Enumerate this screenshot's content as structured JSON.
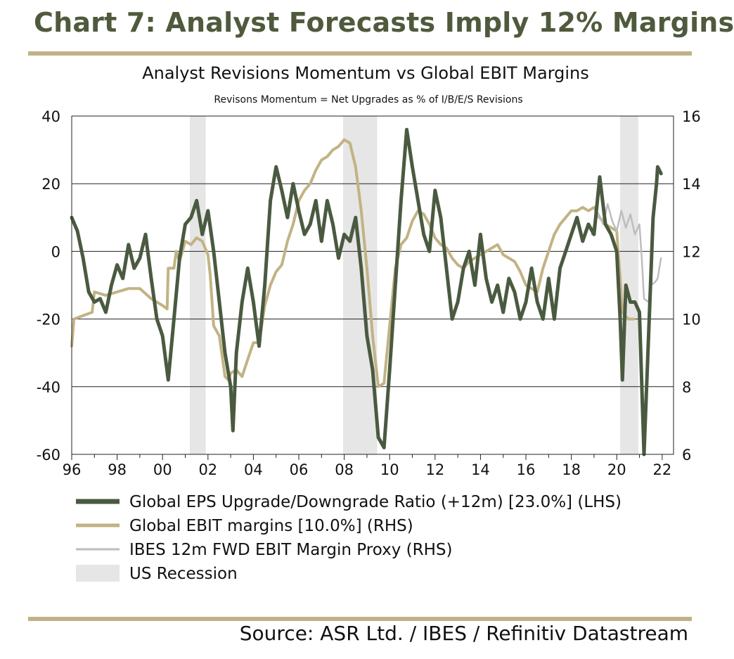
{
  "header": {
    "title": "Chart 7: Analyst Forecasts Imply 12% Margins"
  },
  "footer": {
    "source": "Source: ASR Ltd. / IBES / Refinitiv Datastream"
  },
  "colors": {
    "eps": "#4a5a40",
    "ebit": "#c2b384",
    "proxy": "#bdbdbd",
    "recession": "#e6e6e6",
    "rule": "#c0b287"
  },
  "chart_data": {
    "type": "line",
    "title": "Analyst Revisions Momentum vs Global EBIT Margins",
    "subtitle": "Revisons Momentum = Net Upgrades as % of I/B/E/S Revisions",
    "x_tick_labels": [
      "96",
      "98",
      "00",
      "02",
      "04",
      "06",
      "08",
      "10",
      "12",
      "14",
      "16",
      "18",
      "20",
      "22"
    ],
    "xlim": [
      1996,
      2022.5
    ],
    "y_left": {
      "ylim": [
        -60,
        40
      ],
      "ticks": [
        "40",
        "20",
        "0",
        "-20",
        "-40",
        "-60"
      ]
    },
    "y_right": {
      "ylim": [
        6,
        16
      ],
      "ticks": [
        "16",
        "14",
        "12",
        "10",
        "8",
        "6"
      ]
    },
    "grid": "horizontal",
    "recessions": [
      [
        2001.2,
        2001.9
      ],
      [
        2007.95,
        2009.45
      ],
      [
        2020.15,
        2020.95
      ]
    ],
    "series": [
      {
        "name": "Global EPS Upgrade/Downgrade Ratio (+12m) [23.0%] (LHS)",
        "axis": "left",
        "points": [
          [
            1996.0,
            10
          ],
          [
            1996.25,
            6
          ],
          [
            1996.5,
            -2
          ],
          [
            1996.75,
            -12
          ],
          [
            1997.0,
            -15
          ],
          [
            1997.25,
            -14
          ],
          [
            1997.5,
            -18
          ],
          [
            1997.75,
            -10
          ],
          [
            1998.0,
            -4
          ],
          [
            1998.25,
            -8
          ],
          [
            1998.5,
            2
          ],
          [
            1998.75,
            -5
          ],
          [
            1999.0,
            -2
          ],
          [
            1999.25,
            5
          ],
          [
            1999.5,
            -8
          ],
          [
            1999.75,
            -20
          ],
          [
            2000.0,
            -25
          ],
          [
            2000.25,
            -38
          ],
          [
            2000.5,
            -20
          ],
          [
            2000.75,
            -2
          ],
          [
            2001.0,
            8
          ],
          [
            2001.25,
            10
          ],
          [
            2001.5,
            15
          ],
          [
            2001.75,
            5
          ],
          [
            2002.0,
            12
          ],
          [
            2002.25,
            0
          ],
          [
            2002.5,
            -15
          ],
          [
            2002.75,
            -30
          ],
          [
            2003.0,
            -40
          ],
          [
            2003.1,
            -53
          ],
          [
            2003.25,
            -30
          ],
          [
            2003.5,
            -15
          ],
          [
            2003.75,
            -5
          ],
          [
            2004.0,
            -15
          ],
          [
            2004.25,
            -28
          ],
          [
            2004.5,
            -10
          ],
          [
            2004.75,
            15
          ],
          [
            2005.0,
            25
          ],
          [
            2005.25,
            18
          ],
          [
            2005.5,
            10
          ],
          [
            2005.75,
            20
          ],
          [
            2006.0,
            12
          ],
          [
            2006.25,
            5
          ],
          [
            2006.5,
            8
          ],
          [
            2006.75,
            15
          ],
          [
            2007.0,
            3
          ],
          [
            2007.25,
            15
          ],
          [
            2007.5,
            8
          ],
          [
            2007.75,
            -2
          ],
          [
            2008.0,
            5
          ],
          [
            2008.25,
            3
          ],
          [
            2008.5,
            10
          ],
          [
            2008.75,
            -5
          ],
          [
            2009.0,
            -25
          ],
          [
            2009.25,
            -35
          ],
          [
            2009.5,
            -55
          ],
          [
            2009.75,
            -58
          ],
          [
            2010.0,
            -35
          ],
          [
            2010.25,
            -10
          ],
          [
            2010.5,
            15
          ],
          [
            2010.75,
            36
          ],
          [
            2011.0,
            25
          ],
          [
            2011.25,
            15
          ],
          [
            2011.5,
            5
          ],
          [
            2011.75,
            0
          ],
          [
            2012.0,
            18
          ],
          [
            2012.25,
            10
          ],
          [
            2012.5,
            -5
          ],
          [
            2012.75,
            -20
          ],
          [
            2013.0,
            -15
          ],
          [
            2013.25,
            -5
          ],
          [
            2013.5,
            0
          ],
          [
            2013.75,
            -10
          ],
          [
            2014.0,
            5
          ],
          [
            2014.25,
            -8
          ],
          [
            2014.5,
            -15
          ],
          [
            2014.75,
            -10
          ],
          [
            2015.0,
            -18
          ],
          [
            2015.25,
            -8
          ],
          [
            2015.5,
            -12
          ],
          [
            2015.75,
            -20
          ],
          [
            2016.0,
            -15
          ],
          [
            2016.25,
            -5
          ],
          [
            2016.5,
            -15
          ],
          [
            2016.75,
            -20
          ],
          [
            2017.0,
            -8
          ],
          [
            2017.25,
            -20
          ],
          [
            2017.5,
            -5
          ],
          [
            2017.75,
            0
          ],
          [
            2018.0,
            5
          ],
          [
            2018.25,
            10
          ],
          [
            2018.5,
            3
          ],
          [
            2018.75,
            8
          ],
          [
            2019.0,
            5
          ],
          [
            2019.25,
            22
          ],
          [
            2019.5,
            8
          ],
          [
            2019.75,
            5
          ],
          [
            2020.0,
            0
          ],
          [
            2020.15,
            -20
          ],
          [
            2020.25,
            -38
          ],
          [
            2020.4,
            -10
          ],
          [
            2020.6,
            -15
          ],
          [
            2020.8,
            -15
          ],
          [
            2021.0,
            -18
          ],
          [
            2021.2,
            -60
          ],
          [
            2021.4,
            -25
          ],
          [
            2021.6,
            10
          ],
          [
            2021.75,
            20
          ],
          [
            2021.8,
            25
          ],
          [
            2021.95,
            23
          ]
        ]
      },
      {
        "name": "Global EBIT margins [10.0%] (RHS)",
        "axis": "right",
        "points": [
          [
            1996.0,
            9.2
          ],
          [
            1996.1,
            10
          ],
          [
            1996.5,
            10.1
          ],
          [
            1996.9,
            10.2
          ],
          [
            1997.0,
            10.8
          ],
          [
            1997.5,
            10.7
          ],
          [
            1998.0,
            10.8
          ],
          [
            1998.5,
            10.9
          ],
          [
            1999.0,
            10.9
          ],
          [
            1999.5,
            10.6
          ],
          [
            2000.0,
            10.4
          ],
          [
            2000.2,
            10.3
          ],
          [
            2000.25,
            11.5
          ],
          [
            2000.5,
            11.5
          ],
          [
            2000.6,
            12.0
          ],
          [
            2000.75,
            11.7
          ],
          [
            2001.0,
            12.3
          ],
          [
            2001.25,
            12.2
          ],
          [
            2001.5,
            12.4
          ],
          [
            2001.75,
            12.3
          ],
          [
            2002.0,
            11.9
          ],
          [
            2002.1,
            11.3
          ],
          [
            2002.25,
            9.8
          ],
          [
            2002.5,
            9.5
          ],
          [
            2002.75,
            8.3
          ],
          [
            2002.9,
            8.2
          ],
          [
            2003.0,
            8.4
          ],
          [
            2003.25,
            8.5
          ],
          [
            2003.5,
            8.3
          ],
          [
            2003.75,
            8.8
          ],
          [
            2004.0,
            9.3
          ],
          [
            2004.25,
            9.3
          ],
          [
            2004.5,
            10.4
          ],
          [
            2004.75,
            11.0
          ],
          [
            2005.0,
            11.4
          ],
          [
            2005.25,
            11.6
          ],
          [
            2005.5,
            12.3
          ],
          [
            2005.75,
            12.8
          ],
          [
            2006.0,
            13.5
          ],
          [
            2006.25,
            13.8
          ],
          [
            2006.5,
            14.0
          ],
          [
            2006.75,
            14.4
          ],
          [
            2007.0,
            14.7
          ],
          [
            2007.25,
            14.8
          ],
          [
            2007.5,
            15.0
          ],
          [
            2007.75,
            15.1
          ],
          [
            2008.0,
            15.3
          ],
          [
            2008.25,
            15.2
          ],
          [
            2008.5,
            14.5
          ],
          [
            2008.75,
            13.2
          ],
          [
            2009.0,
            11.5
          ],
          [
            2009.25,
            9.5
          ],
          [
            2009.5,
            8.0
          ],
          [
            2009.75,
            8.1
          ],
          [
            2010.0,
            9.8
          ],
          [
            2010.25,
            11.5
          ],
          [
            2010.5,
            12.2
          ],
          [
            2010.75,
            12.4
          ],
          [
            2011.0,
            12.9
          ],
          [
            2011.25,
            13.2
          ],
          [
            2011.5,
            13.1
          ],
          [
            2011.75,
            12.8
          ],
          [
            2012.0,
            12.4
          ],
          [
            2012.25,
            12.2
          ],
          [
            2012.5,
            12.1
          ],
          [
            2012.75,
            11.8
          ],
          [
            2013.0,
            11.6
          ],
          [
            2013.25,
            11.5
          ],
          [
            2013.5,
            11.7
          ],
          [
            2013.75,
            11.8
          ],
          [
            2014.0,
            11.9
          ],
          [
            2014.25,
            12.0
          ],
          [
            2014.5,
            12.1
          ],
          [
            2014.75,
            12.2
          ],
          [
            2015.0,
            11.9
          ],
          [
            2015.25,
            11.8
          ],
          [
            2015.5,
            11.7
          ],
          [
            2015.75,
            11.4
          ],
          [
            2016.0,
            11.0
          ],
          [
            2016.25,
            10.9
          ],
          [
            2016.5,
            10.8
          ],
          [
            2016.75,
            11.5
          ],
          [
            2017.0,
            12.0
          ],
          [
            2017.25,
            12.5
          ],
          [
            2017.5,
            12.8
          ],
          [
            2017.75,
            13.0
          ],
          [
            2018.0,
            13.2
          ],
          [
            2018.25,
            13.2
          ],
          [
            2018.5,
            13.3
          ],
          [
            2018.75,
            13.2
          ],
          [
            2019.0,
            13.3
          ],
          [
            2019.25,
            13.0
          ],
          [
            2019.5,
            12.8
          ],
          [
            2019.75,
            12.7
          ],
          [
            2020.0,
            12.6
          ],
          [
            2020.15,
            11.2
          ],
          [
            2020.25,
            10.2
          ],
          [
            2020.5,
            10.0
          ],
          [
            2020.75,
            10.0
          ]
        ]
      },
      {
        "name": "IBES 12m FWD EBIT Margin Proxy (RHS)",
        "axis": "right",
        "points": [
          [
            2018.9,
            12.5
          ],
          [
            2019.0,
            12.8
          ],
          [
            2019.2,
            13.1
          ],
          [
            2019.4,
            12.8
          ],
          [
            2019.6,
            13.4
          ],
          [
            2019.8,
            12.9
          ],
          [
            2020.0,
            12.6
          ],
          [
            2020.2,
            13.2
          ],
          [
            2020.4,
            12.7
          ],
          [
            2020.6,
            13.1
          ],
          [
            2020.8,
            12.5
          ],
          [
            2021.0,
            12.8
          ],
          [
            2021.1,
            11.8
          ],
          [
            2021.2,
            10.6
          ],
          [
            2021.4,
            10.5
          ],
          [
            2021.5,
            11.0
          ],
          [
            2021.7,
            11.1
          ],
          [
            2021.8,
            11.2
          ],
          [
            2021.95,
            11.8
          ]
        ]
      }
    ],
    "legend": [
      {
        "label": "Global EPS Upgrade/Downgrade Ratio (+12m) [23.0%] (LHS)",
        "kind": "line",
        "color": "#4a5a40"
      },
      {
        "label": "Global EBIT margins [10.0%] (RHS)",
        "kind": "line",
        "color": "#c2b384"
      },
      {
        "label": "IBES 12m FWD EBIT Margin Proxy (RHS)",
        "kind": "line",
        "color": "#bdbdbd"
      },
      {
        "label": "US Recession",
        "kind": "box",
        "color": "#e6e6e6"
      }
    ],
    "legend_position": "bottom"
  }
}
